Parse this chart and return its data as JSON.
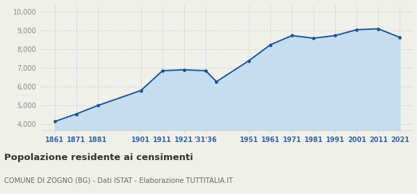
{
  "years": [
    1861,
    1871,
    1881,
    1901,
    1911,
    1921,
    1931,
    1936,
    1951,
    1961,
    1971,
    1981,
    1991,
    2001,
    2011,
    2021
  ],
  "population": [
    4150,
    4550,
    5000,
    5800,
    6850,
    6900,
    6850,
    6270,
    7380,
    8230,
    8720,
    8580,
    8720,
    9030,
    9080,
    8620
  ],
  "tick_labels": [
    "1861",
    "1871",
    "1881",
    "1901",
    "1911",
    "1921",
    "'31'36",
    "1951",
    "1961",
    "1971",
    "1981",
    "1991",
    "2001",
    "2011",
    "2021"
  ],
  "tick_years": [
    1861,
    1871,
    1881,
    1901,
    1911,
    1921,
    1931,
    1951,
    1961,
    1971,
    1981,
    1991,
    2001,
    2011,
    2021
  ],
  "line_color": "#1a5296",
  "fill_color": "#c5ddf0",
  "marker_color": "#1a5296",
  "grid_color": "#d0d0d0",
  "background_color": "#f0f0eb",
  "title": "Popolazione residente ai censimenti",
  "subtitle": "COMUNE DI ZOGNO (BG) - Dati ISTAT - Elaborazione TUTTITALIA.IT",
  "ylim": [
    3700,
    10300
  ],
  "yticks": [
    4000,
    5000,
    6000,
    7000,
    8000,
    9000,
    10000
  ],
  "ytick_labels": [
    "4,000",
    "5,000",
    "6,000",
    "7,000",
    "8,000",
    "9,000",
    "10,000"
  ],
  "tick_color": "#3366aa",
  "title_color": "#333333",
  "subtitle_color": "#666666"
}
